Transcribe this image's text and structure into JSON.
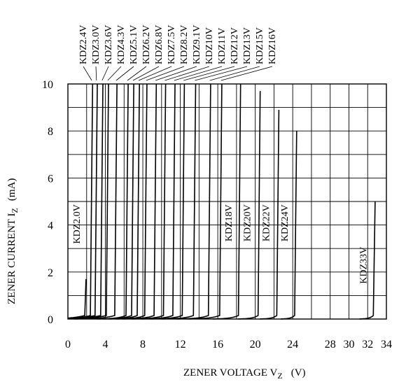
{
  "chart_data": {
    "type": "line",
    "title": "",
    "xlabel": "ZENER VOLTAGE V",
    "xlabel_sub": "Z",
    "xlabel_unit": "(V)",
    "ylabel": "ZENER CURRENT  I",
    "ylabel_sub": "Z",
    "ylabel_unit": "(mA)",
    "xlim": [
      0,
      34
    ],
    "ylim": [
      0,
      10
    ],
    "xticks": [
      0,
      2,
      4,
      6,
      8,
      10,
      12,
      14,
      16,
      18,
      20,
      22,
      24,
      26,
      28,
      30,
      32,
      34
    ],
    "xtick_labels": [
      "0",
      "4",
      "8",
      "12",
      "16",
      "20",
      "24",
      "28",
      "30",
      "32",
      "34"
    ],
    "xtick_label_values": [
      0,
      4,
      8,
      12,
      16,
      20,
      24,
      28,
      30,
      32,
      34
    ],
    "yticks": [
      0,
      1,
      2,
      3,
      4,
      5,
      6,
      7,
      8,
      9,
      10
    ],
    "ytick_labels": [
      "0",
      "2",
      "4",
      "6",
      "8",
      "10"
    ],
    "ytick_label_values": [
      0,
      2,
      4,
      6,
      8,
      10
    ],
    "grid": true,
    "series": [
      {
        "name": "KDZ2.0V",
        "vz": 1.8,
        "knee": 1.4,
        "ymax": 1.7
      },
      {
        "name": "KDZ2.4V",
        "vz": 2.4,
        "knee": 1.4,
        "ymax": 10
      },
      {
        "name": "KDZ3.0V",
        "vz": 2.9,
        "knee": 1.5,
        "ymax": 10
      },
      {
        "name": "KDZ3.6V",
        "vz": 3.5,
        "knee": 1.5,
        "ymax": 10
      },
      {
        "name": "KDZ4.3V",
        "vz": 4.1,
        "knee": 1.5,
        "ymax": 10
      },
      {
        "name": "KDZ5.1V",
        "vz": 5.0,
        "knee": 1.3,
        "ymax": 10
      },
      {
        "name": "KDZ6.2V",
        "vz": 6.2,
        "knee": 0.9,
        "ymax": 10
      },
      {
        "name": "KDZ6.8V",
        "vz": 6.8,
        "knee": 0.9,
        "ymax": 10
      },
      {
        "name": "KDZ7.5V",
        "vz": 7.4,
        "knee": 0.9,
        "ymax": 10
      },
      {
        "name": "KDZ8.2V",
        "vz": 8.2,
        "knee": 0.9,
        "ymax": 10
      },
      {
        "name": "KDZ9.1V",
        "vz": 9.2,
        "knee": 1.0,
        "ymax": 10
      },
      {
        "name": "KDZ10V",
        "vz": 10.2,
        "knee": 1.0,
        "ymax": 10
      },
      {
        "name": "KDZ11V",
        "vz": 11.2,
        "knee": 1.0,
        "ymax": 10
      },
      {
        "name": "KDZ12V",
        "vz": 12.2,
        "knee": 1.0,
        "ymax": 10
      },
      {
        "name": "KDZ13V",
        "vz": 13.4,
        "knee": 1.0,
        "ymax": 10
      },
      {
        "name": "KDZ15V",
        "vz": 15.0,
        "knee": 1.0,
        "ymax": 10
      },
      {
        "name": "KDZ16V",
        "vz": 16.2,
        "knee": 1.0,
        "ymax": 10
      },
      {
        "name": "KDZ18V",
        "vz": 18.2,
        "knee": 0.8,
        "ymax": 10
      },
      {
        "name": "KDZ20V",
        "vz": 20.3,
        "knee": 0.6,
        "ymax": 9.7
      },
      {
        "name": "KDZ22V",
        "vz": 22.3,
        "knee": 0.5,
        "ymax": 8.9
      },
      {
        "name": "KDZ24V",
        "vz": 24.2,
        "knee": 0.4,
        "ymax": 8.0
      },
      {
        "name": "KDZ33V",
        "vz": 32.6,
        "knee": 0.4,
        "ymax": 5.0
      }
    ],
    "top_label_series": [
      "KDZ2.4V",
      "KDZ3.0V",
      "KDZ3.6V",
      "KDZ4.3V",
      "KDZ5.1V",
      "KDZ6.2V",
      "KDZ6.8V",
      "KDZ7.5V",
      "KDZ8.2V",
      "KDZ9.1V",
      "KDZ10V",
      "KDZ11V",
      "KDZ12V",
      "KDZ13V",
      "KDZ15V",
      "KDZ16V"
    ],
    "inline_label_series": [
      "KDZ2.0V",
      "KDZ18V",
      "KDZ20V",
      "KDZ22V",
      "KDZ24V",
      "KDZ33V"
    ]
  }
}
